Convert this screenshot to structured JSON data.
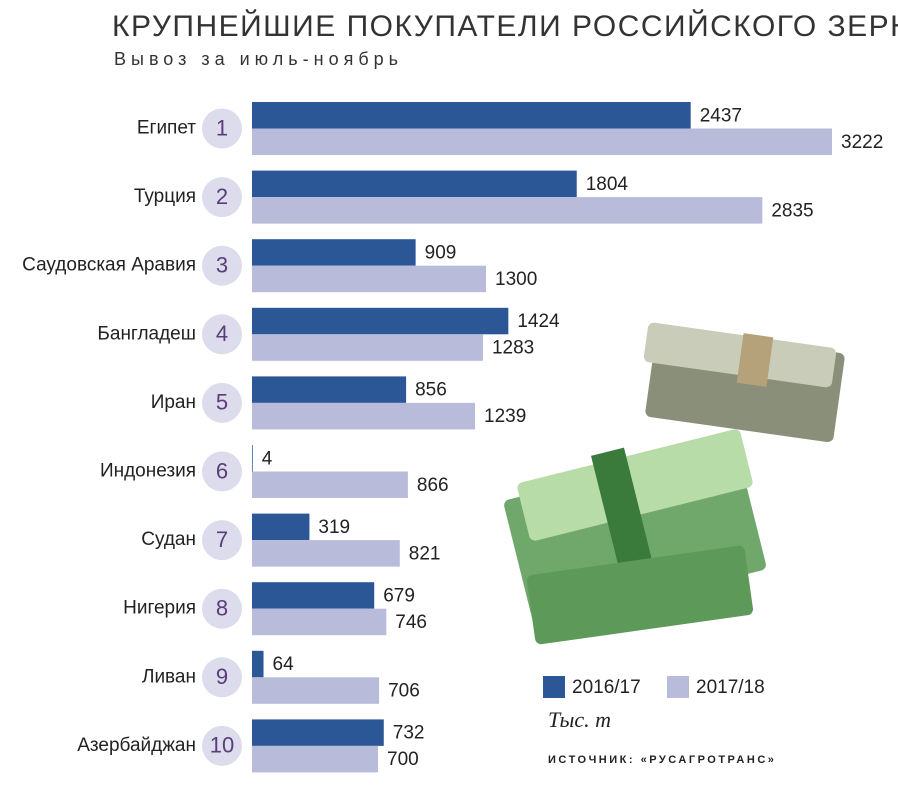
{
  "chart_data": {
    "type": "bar",
    "title": "КРУПНЕЙШИЕ ПОКУПАТЕЛИ РОССИЙСКОГО ЗЕРНА",
    "subtitle": "Вывоз за июль-ноябрь",
    "categories": [
      "Египет",
      "Турция",
      "Саудовская Аравия",
      "Бангладеш",
      "Иран",
      "Индонезия",
      "Судан",
      "Нигерия",
      "Ливан",
      "Азербайджан"
    ],
    "ranks": [
      "1",
      "2",
      "3",
      "4",
      "5",
      "6",
      "7",
      "8",
      "9",
      "10"
    ],
    "series": [
      {
        "name": "2016/17",
        "color": "#2b5797",
        "values": [
          2437,
          1804,
          909,
          1424,
          856,
          4,
          319,
          679,
          64,
          732
        ]
      },
      {
        "name": "2017/18",
        "color": "#b8bbd9",
        "values": [
          3222,
          2835,
          1300,
          1283,
          1239,
          866,
          821,
          746,
          706,
          700
        ]
      }
    ],
    "unit": "Тыс. т",
    "source": "ИСТОЧНИК: «РУСАГРОТРАНС»"
  }
}
